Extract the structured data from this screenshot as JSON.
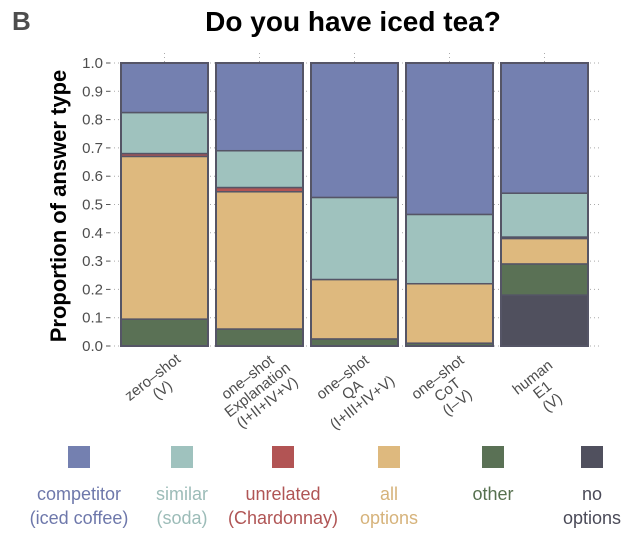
{
  "panel_letter": "B",
  "chart_data": {
    "type": "bar",
    "stacked": true,
    "title": "Do you have iced tea?",
    "xlabel": "",
    "ylabel": "Proportion of answer type",
    "ylim": [
      0,
      1
    ],
    "yticks": [
      "0.0",
      "0.1",
      "0.2",
      "0.3",
      "0.4",
      "0.5",
      "0.6",
      "0.7",
      "0.8",
      "0.9",
      "1.0"
    ],
    "grid": true,
    "legend_position": "bottom",
    "categories": [
      [
        "zero–shot",
        "(V)"
      ],
      [
        "one–shot",
        "Explanation",
        "(I+II+IV+V)"
      ],
      [
        "one–shot",
        "QA",
        "(I+III+IV+V)"
      ],
      [
        "one–shot",
        "CoT",
        "(I–V)"
      ],
      [
        "human",
        "E1",
        "(V)"
      ]
    ],
    "series": [
      {
        "name": "no options",
        "color": "#50505e",
        "values": [
          0.0,
          0.0,
          0.0,
          0.0,
          0.18
        ]
      },
      {
        "name": "other",
        "color": "#5a7155",
        "values": [
          0.095,
          0.06,
          0.025,
          0.01,
          0.11
        ]
      },
      {
        "name": "all options",
        "color": "#deb97e",
        "values": [
          0.575,
          0.485,
          0.21,
          0.21,
          0.09
        ]
      },
      {
        "name": "unrelated (Chardonnay)",
        "color": "#b25454",
        "values": [
          0.01,
          0.015,
          0.0,
          0.0,
          0.005
        ]
      },
      {
        "name": "similar (soda)",
        "color": "#9fc2be",
        "values": [
          0.145,
          0.13,
          0.29,
          0.245,
          0.155
        ]
      },
      {
        "name": "competitor (iced coffee)",
        "color": "#7480b0",
        "values": [
          0.175,
          0.31,
          0.475,
          0.535,
          0.46
        ]
      }
    ]
  },
  "legend": [
    {
      "label": "competitor\n(iced coffee)",
      "color": "#7480b0",
      "text_color": "#6e78ab"
    },
    {
      "label": "similar\n(soda)",
      "color": "#9fc2be",
      "text_color": "#9cbcb8"
    },
    {
      "label": "unrelated\n(Chardonnay)",
      "color": "#b25454",
      "text_color": "#b05555"
    },
    {
      "label": "all\noptions",
      "color": "#deb97e",
      "text_color": "#d6b37b"
    },
    {
      "label": "other",
      "color": "#5a7155",
      "text_color": "#56704f"
    },
    {
      "label": "no\noptions",
      "color": "#50505e",
      "text_color": "#4a4a58"
    }
  ]
}
